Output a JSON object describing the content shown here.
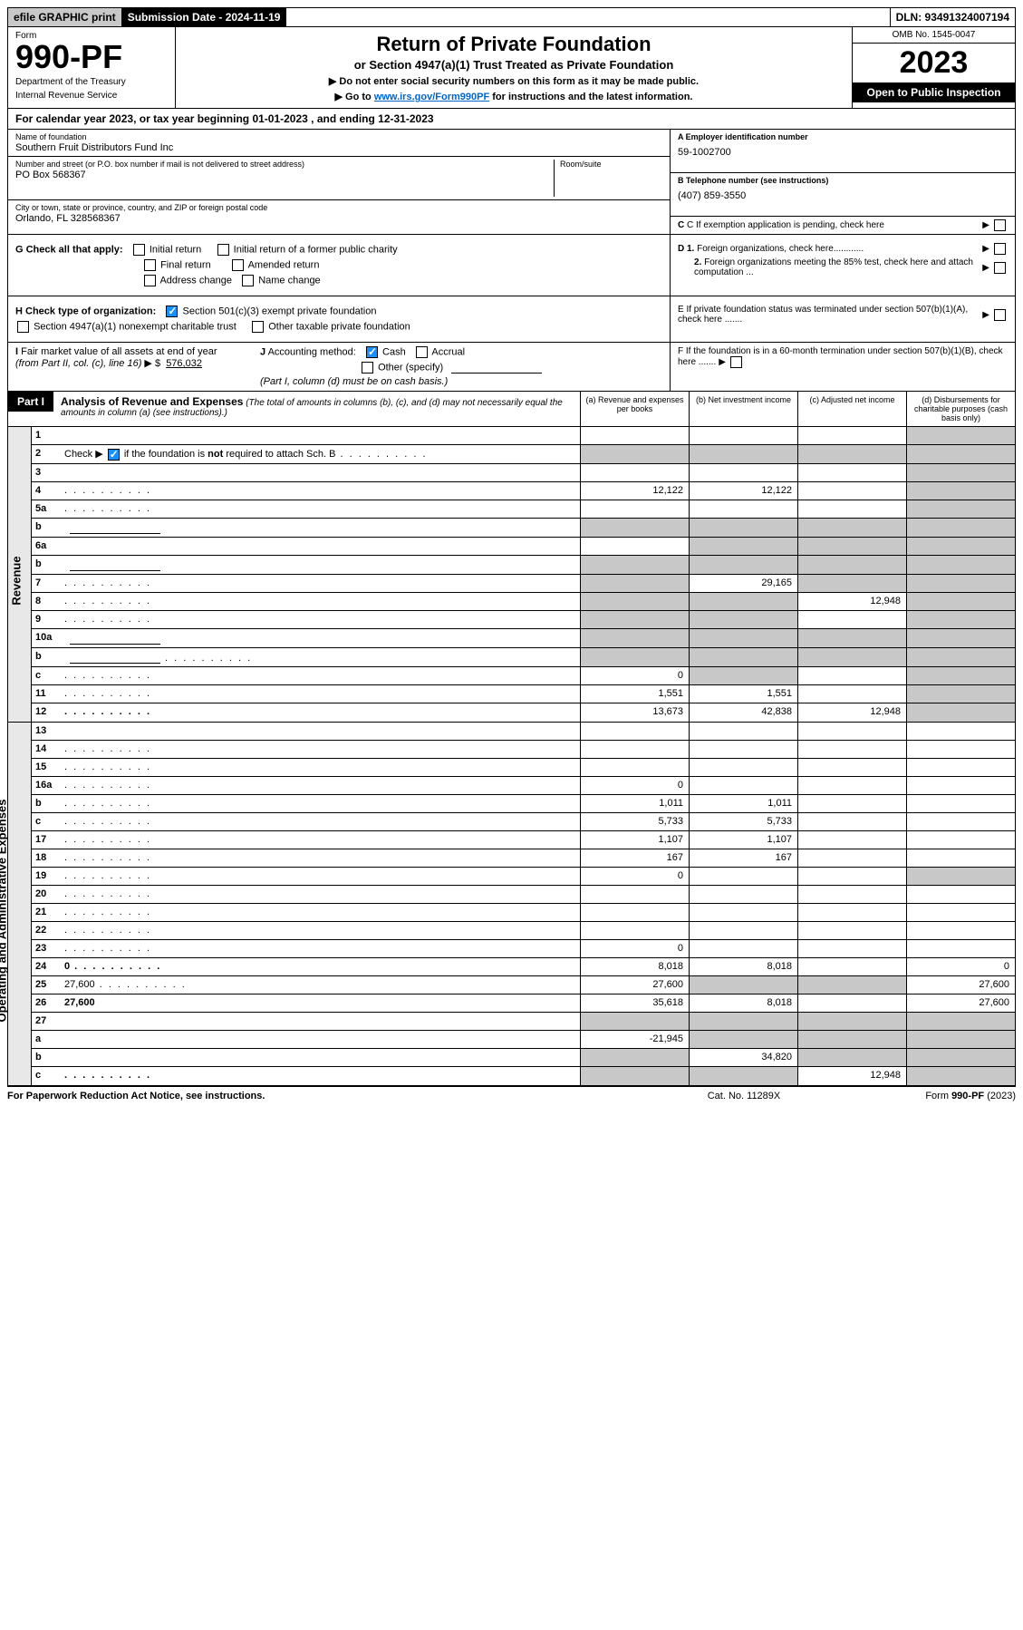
{
  "colors": {
    "black": "#000000",
    "white": "#ffffff",
    "grey_bg": "#c8c8c8",
    "side_bg": "#e8e8e8",
    "link": "#0066cc",
    "check_blue": "#1890ff"
  },
  "fonts": {
    "base_size": 11,
    "title_size": 22,
    "form_num_size": 36,
    "year_size": 34
  },
  "topbar": {
    "efile": "efile GRAPHIC print",
    "sub_date_lbl": "Submission Date - 2024-11-19",
    "dln": "DLN: 93491324007194"
  },
  "header": {
    "form_lbl": "Form",
    "form_num": "990-PF",
    "dept1": "Department of the Treasury",
    "dept2": "Internal Revenue Service",
    "title": "Return of Private Foundation",
    "subtitle": "or Section 4947(a)(1) Trust Treated as Private Foundation",
    "note1": "▶ Do not enter social security numbers on this form as it may be made public.",
    "note2_pre": "▶ Go to ",
    "note2_link": "www.irs.gov/Form990PF",
    "note2_post": " for instructions and the latest information.",
    "omb": "OMB No. 1545-0047",
    "year": "2023",
    "open": "Open to Public Inspection"
  },
  "calyear": "For calendar year 2023, or tax year beginning 01-01-2023                             , and ending 12-31-2023",
  "info": {
    "name_lbl": "Name of foundation",
    "name": "Southern Fruit Distributors Fund Inc",
    "addr_lbl": "Number and street (or P.O. box number if mail is not delivered to street address)",
    "addr": "PO Box 568367",
    "room_lbl": "Room/suite",
    "city_lbl": "City or town, state or province, country, and ZIP or foreign postal code",
    "city": "Orlando, FL  328568367",
    "ein_lbl": "A Employer identification number",
    "ein": "59-1002700",
    "tel_lbl": "B Telephone number (see instructions)",
    "tel": "(407) 859-3550",
    "c_lbl": "C If exemption application is pending, check here",
    "d1": "D 1. Foreign organizations, check here............",
    "d2": "2. Foreign organizations meeting the 85% test, check here and attach computation ...",
    "e": "E   If private foundation status was terminated under section 507(b)(1)(A), check here .......",
    "f": "F   If the foundation is in a 60-month termination under section 507(b)(1)(B), check here ......."
  },
  "checks": {
    "g_lbl": "G Check all that apply:",
    "g_initial": "Initial return",
    "g_initial_former": "Initial return of a former public charity",
    "g_final": "Final return",
    "g_amended": "Amended return",
    "g_addr": "Address change",
    "g_name": "Name change",
    "h_lbl": "H Check type of organization:",
    "h_501c3": "Section 501(c)(3) exempt private foundation",
    "h_4947": "Section 4947(a)(1) nonexempt charitable trust",
    "h_other": "Other taxable private foundation",
    "i_lbl": "I Fair market value of all assets at end of year (from Part II, col. (c), line 16)",
    "i_val": "576,032",
    "j_lbl": "J Accounting method:",
    "j_cash": "Cash",
    "j_accrual": "Accrual",
    "j_other": "Other (specify)",
    "j_note": "(Part I, column (d) must be on cash basis.)"
  },
  "part1": {
    "hdr": "Part I",
    "title": "Analysis of Revenue and Expenses",
    "note": "(The total of amounts in columns (b), (c), and (d) may not necessarily equal the amounts in column (a) (see instructions).)",
    "col_a": "(a)   Revenue and expenses per books",
    "col_b": "(b)   Net investment income",
    "col_c": "(c)   Adjusted net income",
    "col_d": "(d)  Disbursements for charitable purposes (cash basis only)"
  },
  "side_rev": "Revenue",
  "side_exp": "Operating and Administrative Expenses",
  "rows": [
    {
      "n": "1",
      "d": "",
      "a": "",
      "b": "",
      "c": "",
      "gd": true
    },
    {
      "n": "2",
      "d": "",
      "dots": true,
      "a": "",
      "b": "",
      "c": "",
      "ga": true,
      "gb": true,
      "gc": true,
      "gd": true,
      "checkbox": true
    },
    {
      "n": "3",
      "d": "",
      "a": "",
      "b": "",
      "c": "",
      "gd": true
    },
    {
      "n": "4",
      "d": "",
      "dots": true,
      "a": "12,122",
      "b": "12,122",
      "c": "",
      "gd": true
    },
    {
      "n": "5a",
      "d": "",
      "dots": true,
      "a": "",
      "b": "",
      "c": "",
      "gd": true
    },
    {
      "n": "b",
      "d": "",
      "inline": true,
      "a": "",
      "b": "",
      "c": "",
      "ga": true,
      "gb": true,
      "gc": true,
      "gd": true
    },
    {
      "n": "6a",
      "d": "",
      "a": "",
      "b": "",
      "c": "",
      "gb": true,
      "gc": true,
      "gd": true
    },
    {
      "n": "b",
      "d": "",
      "inline": true,
      "a": "",
      "b": "",
      "c": "",
      "ga": true,
      "gb": true,
      "gc": true,
      "gd": true
    },
    {
      "n": "7",
      "d": "",
      "dots": true,
      "a": "",
      "b": "29,165",
      "c": "",
      "ga": true,
      "gc": true,
      "gd": true
    },
    {
      "n": "8",
      "d": "",
      "dots": true,
      "a": "",
      "b": "",
      "c": "12,948",
      "ga": true,
      "gb": true,
      "gd": true
    },
    {
      "n": "9",
      "d": "",
      "dots": true,
      "a": "",
      "b": "",
      "c": "",
      "ga": true,
      "gb": true,
      "gd": true
    },
    {
      "n": "10a",
      "d": "",
      "inline": true,
      "a": "",
      "b": "",
      "c": "",
      "ga": true,
      "gb": true,
      "gc": true,
      "gd": true
    },
    {
      "n": "b",
      "d": "",
      "dots": true,
      "inline": true,
      "a": "",
      "b": "",
      "c": "",
      "ga": true,
      "gb": true,
      "gc": true,
      "gd": true
    },
    {
      "n": "c",
      "d": "",
      "dots": true,
      "a": "0",
      "b": "",
      "c": "",
      "gb": true,
      "gd": true
    },
    {
      "n": "11",
      "d": "",
      "dots": true,
      "a": "1,551",
      "b": "1,551",
      "c": "",
      "gd": true
    },
    {
      "n": "12",
      "d": "",
      "dots": true,
      "bold": true,
      "a": "13,673",
      "b": "42,838",
      "c": "12,948",
      "gd": true
    }
  ],
  "rows_exp": [
    {
      "n": "13",
      "d": "",
      "a": "",
      "b": "",
      "c": ""
    },
    {
      "n": "14",
      "d": "",
      "dots": true,
      "a": "",
      "b": "",
      "c": ""
    },
    {
      "n": "15",
      "d": "",
      "dots": true,
      "a": "",
      "b": "",
      "c": ""
    },
    {
      "n": "16a",
      "d": "",
      "dots": true,
      "a": "0",
      "b": "",
      "c": ""
    },
    {
      "n": "b",
      "d": "",
      "dots": true,
      "a": "1,011",
      "b": "1,011",
      "c": ""
    },
    {
      "n": "c",
      "d": "",
      "dots": true,
      "a": "5,733",
      "b": "5,733",
      "c": ""
    },
    {
      "n": "17",
      "d": "",
      "dots": true,
      "a": "1,107",
      "b": "1,107",
      "c": ""
    },
    {
      "n": "18",
      "d": "",
      "dots": true,
      "a": "167",
      "b": "167",
      "c": ""
    },
    {
      "n": "19",
      "d": "",
      "dots": true,
      "a": "0",
      "b": "",
      "c": "",
      "gd": true
    },
    {
      "n": "20",
      "d": "",
      "dots": true,
      "a": "",
      "b": "",
      "c": ""
    },
    {
      "n": "21",
      "d": "",
      "dots": true,
      "a": "",
      "b": "",
      "c": ""
    },
    {
      "n": "22",
      "d": "",
      "dots": true,
      "a": "",
      "b": "",
      "c": ""
    },
    {
      "n": "23",
      "d": "",
      "dots": true,
      "a": "0",
      "b": "",
      "c": ""
    },
    {
      "n": "24",
      "d": "0",
      "dots": true,
      "bold": true,
      "a": "8,018",
      "b": "8,018",
      "c": ""
    },
    {
      "n": "25",
      "d": "27,600",
      "dots": true,
      "a": "27,600",
      "b": "",
      "c": "",
      "gb": true,
      "gc": true
    },
    {
      "n": "26",
      "d": "27,600",
      "bold": true,
      "a": "35,618",
      "b": "8,018",
      "c": ""
    },
    {
      "n": "27",
      "d": "",
      "a": "",
      "b": "",
      "c": "",
      "ga": true,
      "gb": true,
      "gc": true,
      "gd": true
    },
    {
      "n": "a",
      "d": "",
      "bold": true,
      "a": "-21,945",
      "b": "",
      "c": "",
      "gb": true,
      "gc": true,
      "gd": true
    },
    {
      "n": "b",
      "d": "",
      "bold": true,
      "a": "",
      "b": "34,820",
      "c": "",
      "ga": true,
      "gc": true,
      "gd": true
    },
    {
      "n": "c",
      "d": "",
      "dots": true,
      "bold": true,
      "a": "",
      "b": "",
      "c": "12,948",
      "ga": true,
      "gb": true,
      "gd": true
    }
  ],
  "footer": {
    "left": "For Paperwork Reduction Act Notice, see instructions.",
    "center": "Cat. No. 11289X",
    "right": "Form 990-PF (2023)"
  }
}
